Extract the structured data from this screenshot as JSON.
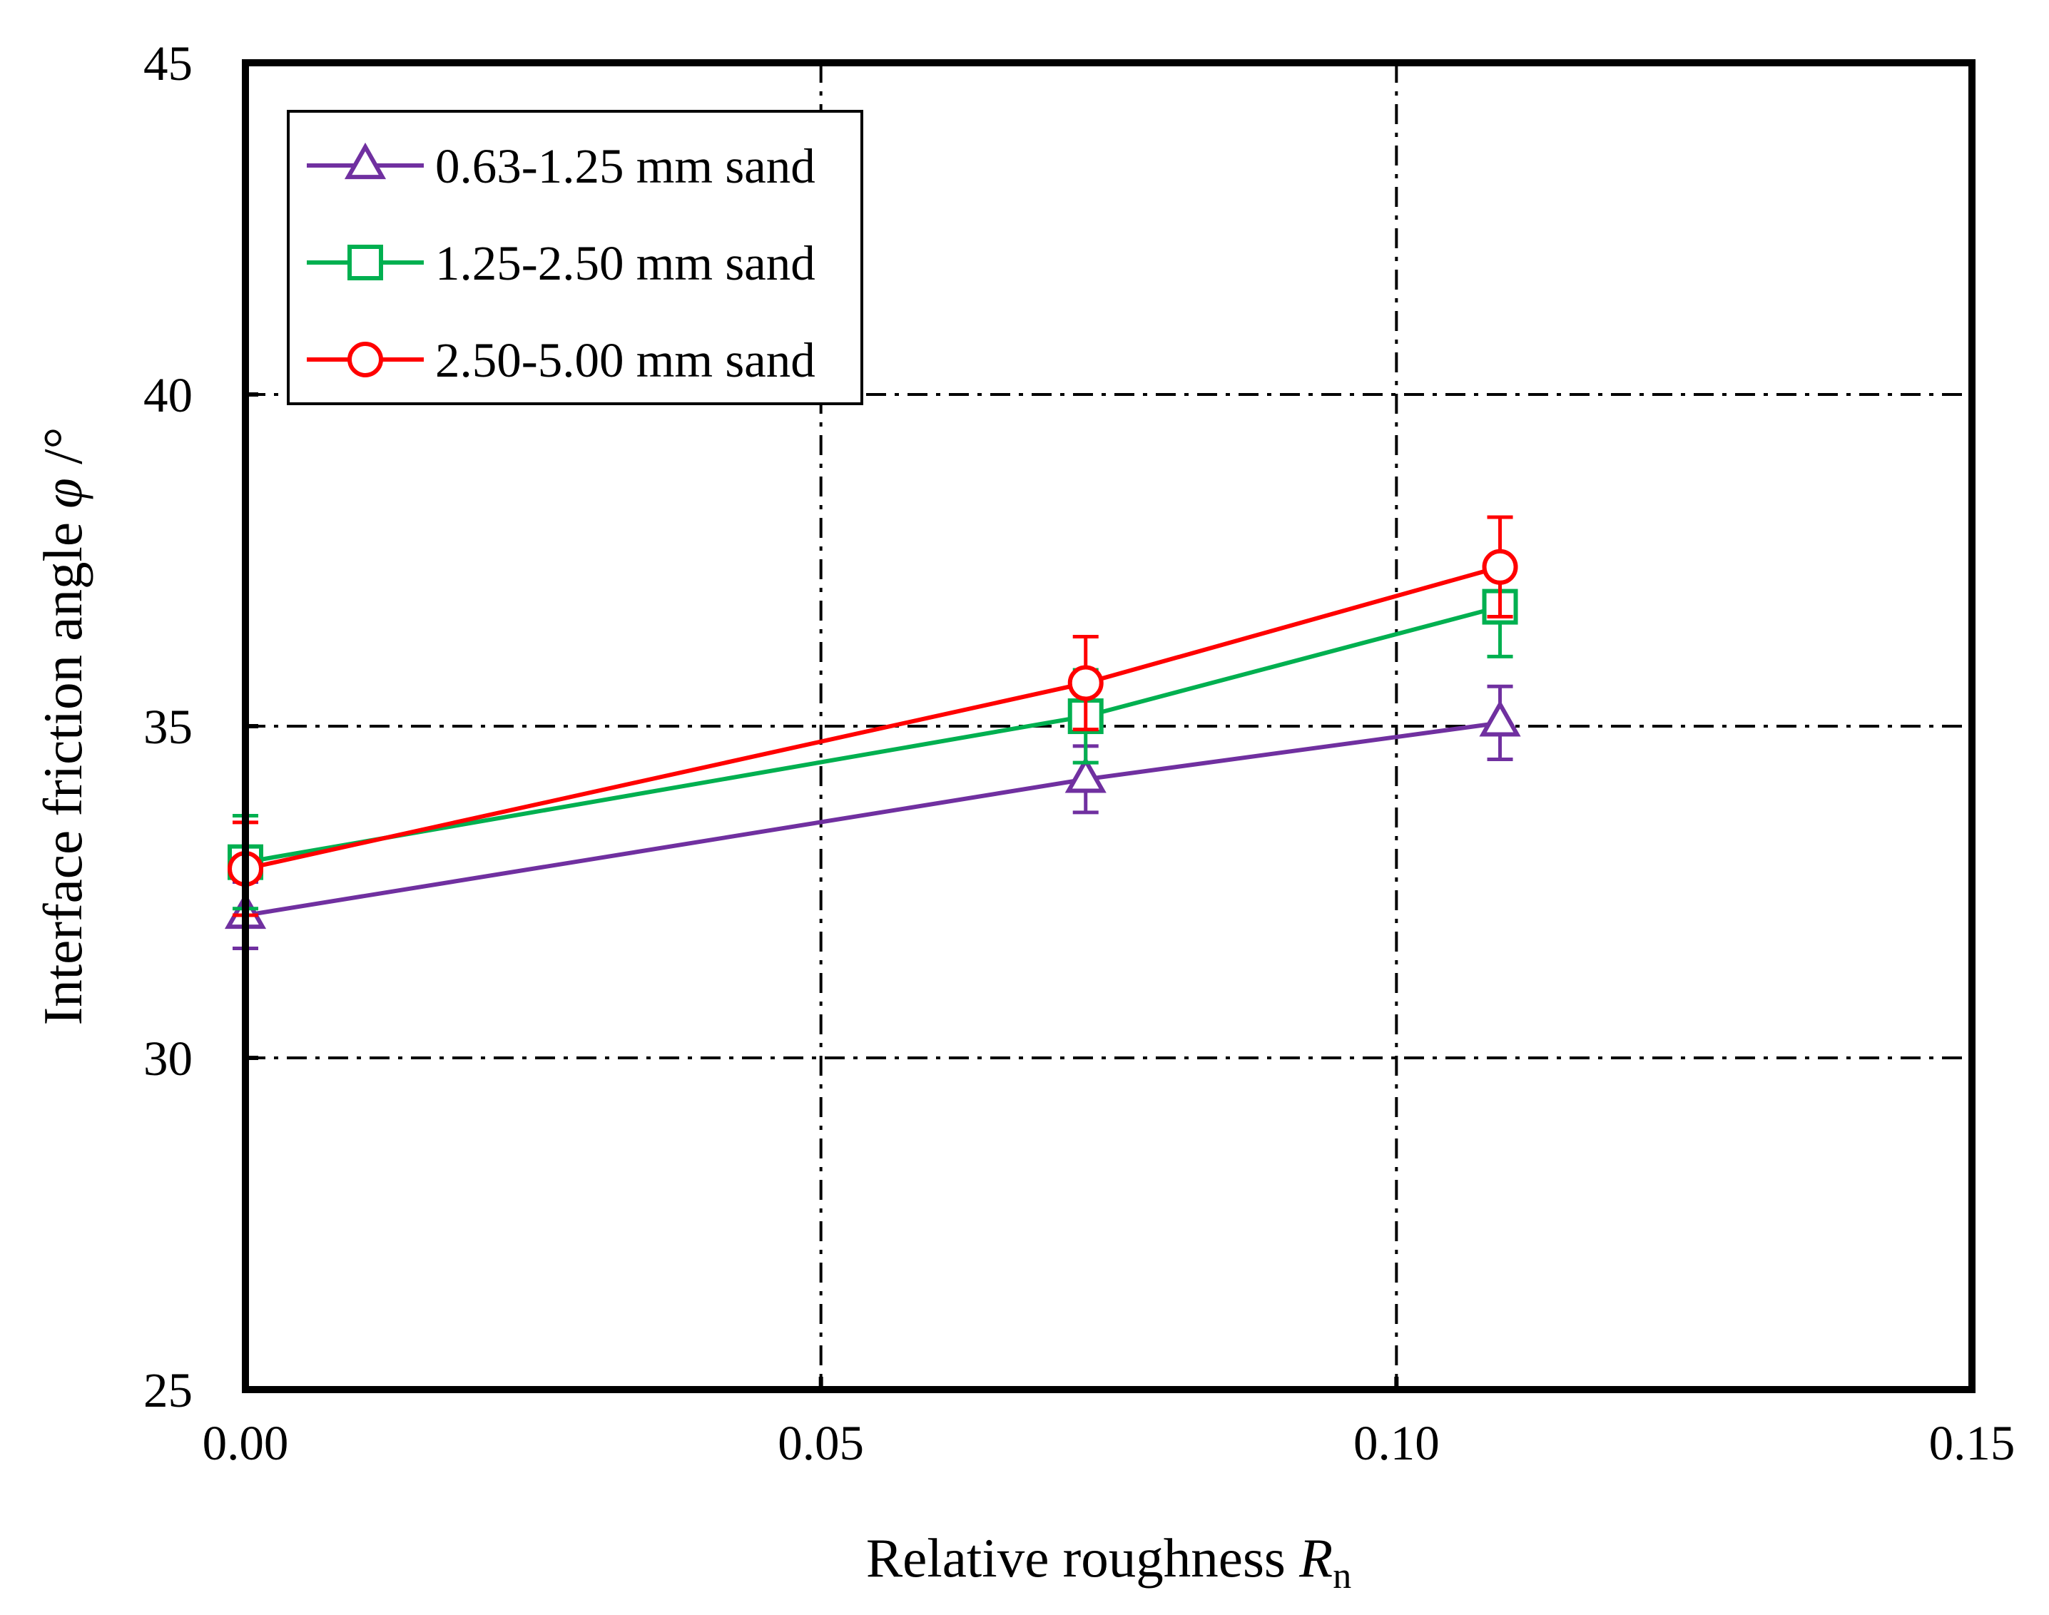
{
  "chart_data": {
    "type": "line",
    "xlabel": "Relative roughness",
    "xlabel_symbol": "R",
    "xlabel_subscript": "n",
    "ylabel": "Interface friction angle",
    "ylabel_symbol": "φ",
    "ylabel_unit": "/°",
    "xlim": [
      0.0,
      0.15
    ],
    "ylim": [
      25,
      45
    ],
    "xticks": [
      "0.00",
      "0.05",
      "0.10",
      "0.15"
    ],
    "yticks": [
      "25",
      "30",
      "35",
      "40",
      "45"
    ],
    "grid": true,
    "legend_position": "top-left",
    "series": [
      {
        "name": "0.63-1.25 mm sand",
        "color": "#7030A0",
        "marker": "triangle",
        "x": [
          0.0,
          0.073,
          0.109
        ],
        "y": [
          32.15,
          34.2,
          35.05
        ],
        "err": [
          0.5,
          0.5,
          0.55
        ]
      },
      {
        "name": "1.25-2.50 mm sand",
        "color": "#00B050",
        "marker": "square",
        "x": [
          0.0,
          0.073,
          0.109
        ],
        "y": [
          32.95,
          35.15,
          36.8
        ],
        "err": [
          0.7,
          0.7,
          0.75
        ]
      },
      {
        "name": "2.50-5.00 mm sand",
        "color": "#FF0000",
        "marker": "circle",
        "x": [
          0.0,
          0.073,
          0.109
        ],
        "y": [
          32.85,
          35.65,
          37.4
        ],
        "err": [
          0.7,
          0.7,
          0.75
        ]
      }
    ]
  }
}
